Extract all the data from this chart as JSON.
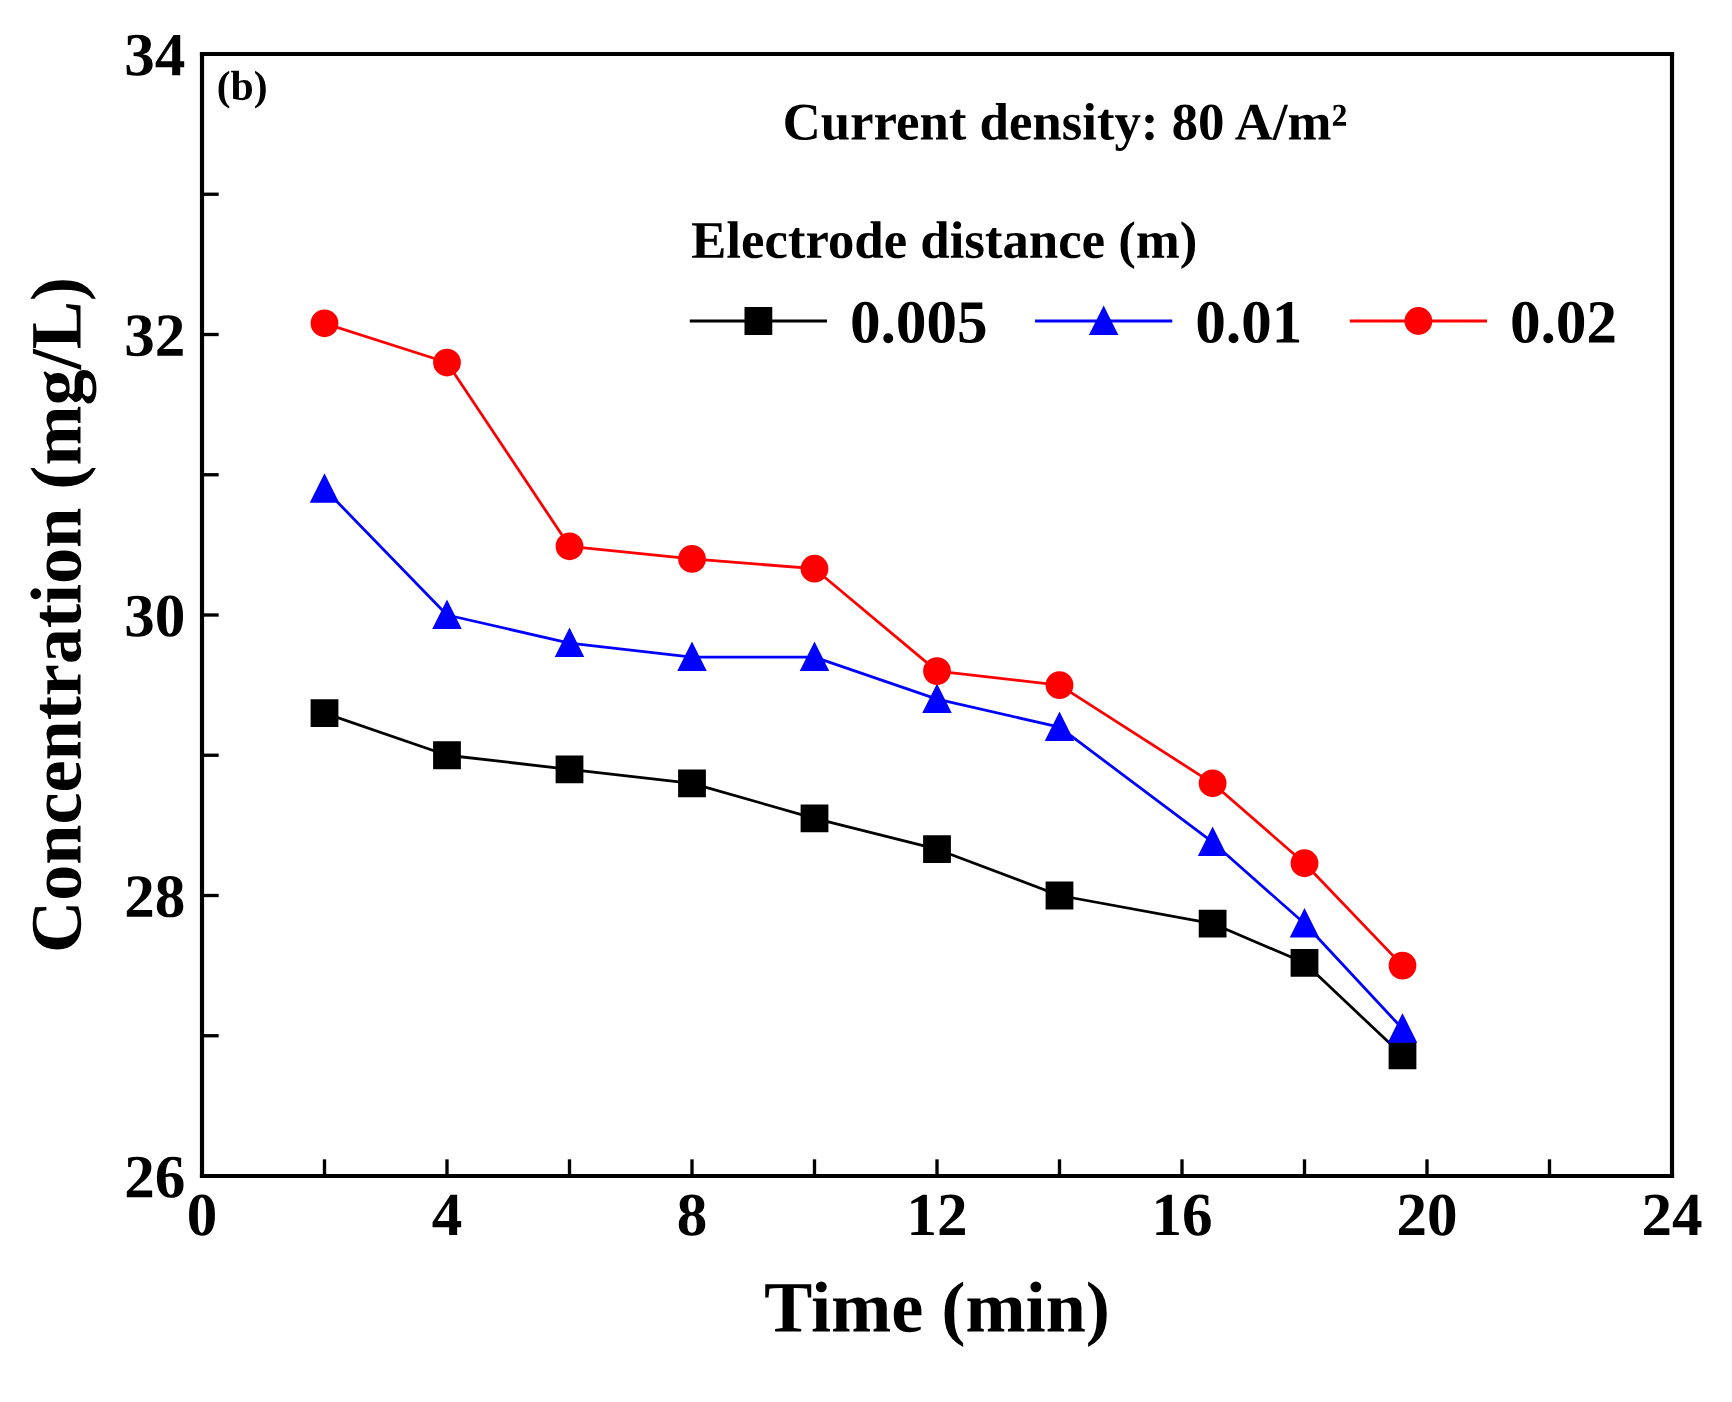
{
  "chart_data": {
    "type": "line",
    "xlabel": "Time (min)",
    "ylabel": "Concentration (mg/L)",
    "x": [
      2,
      4,
      6,
      8,
      10,
      12,
      14,
      16.5,
      18,
      19.6
    ],
    "series": [
      {
        "name": "0.005",
        "color": "#000000",
        "marker": "square",
        "values": [
          29.3,
          29.0,
          28.9,
          28.8,
          28.55,
          28.33,
          28.0,
          27.8,
          27.52,
          26.86
        ]
      },
      {
        "name": "0.01",
        "color": "#0000ff",
        "marker": "triangle",
        "values": [
          30.9,
          30.0,
          29.8,
          29.7,
          29.7,
          29.4,
          29.2,
          28.38,
          27.8,
          27.05
        ]
      },
      {
        "name": "0.02",
        "color": "#ff0000",
        "marker": "circle",
        "values": [
          32.08,
          31.8,
          30.49,
          30.4,
          30.33,
          29.6,
          29.5,
          28.8,
          28.23,
          27.5
        ]
      }
    ],
    "legend_title": "Electrode distance (m)",
    "legend": "top right",
    "annotations": [
      "(b)",
      "Current density: 80 A/m²"
    ],
    "xlim": [
      0,
      24
    ],
    "xticks": [
      0,
      {
        "value": 2,
        "label": null
      },
      4,
      {
        "value": 6,
        "label": null
      },
      8,
      {
        "value": 10,
        "label": null
      },
      12,
      {
        "value": 14,
        "label": null
      },
      16,
      {
        "value": 18,
        "label": null
      },
      20,
      {
        "value": 22,
        "label": null
      },
      24
    ],
    "ylim": [
      26,
      34
    ],
    "yticks": [
      26,
      {
        "value": 27,
        "label": null
      },
      28,
      {
        "value": 29,
        "label": null
      },
      30,
      {
        "value": 31,
        "label": null
      },
      32,
      {
        "value": 33,
        "label": null
      },
      34
    ],
    "grid": false,
    "line_style": "solid"
  }
}
